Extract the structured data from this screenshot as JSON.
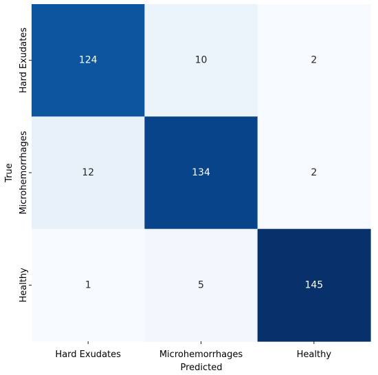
{
  "chart_data": {
    "type": "heatmap",
    "title": "",
    "xlabel": "Predicted",
    "ylabel": "True",
    "x_categories": [
      "Hard Exudates",
      "Microhemorrhages",
      "Healthy"
    ],
    "y_categories": [
      "Hard Exudates",
      "Microhemorrhages",
      "Healthy"
    ],
    "values": [
      [
        124,
        10,
        2
      ],
      [
        12,
        134,
        2
      ],
      [
        1,
        5,
        145
      ]
    ],
    "colormap": "Blues",
    "value_range": [
      1,
      145
    ],
    "colorbar": false,
    "grid": false
  }
}
